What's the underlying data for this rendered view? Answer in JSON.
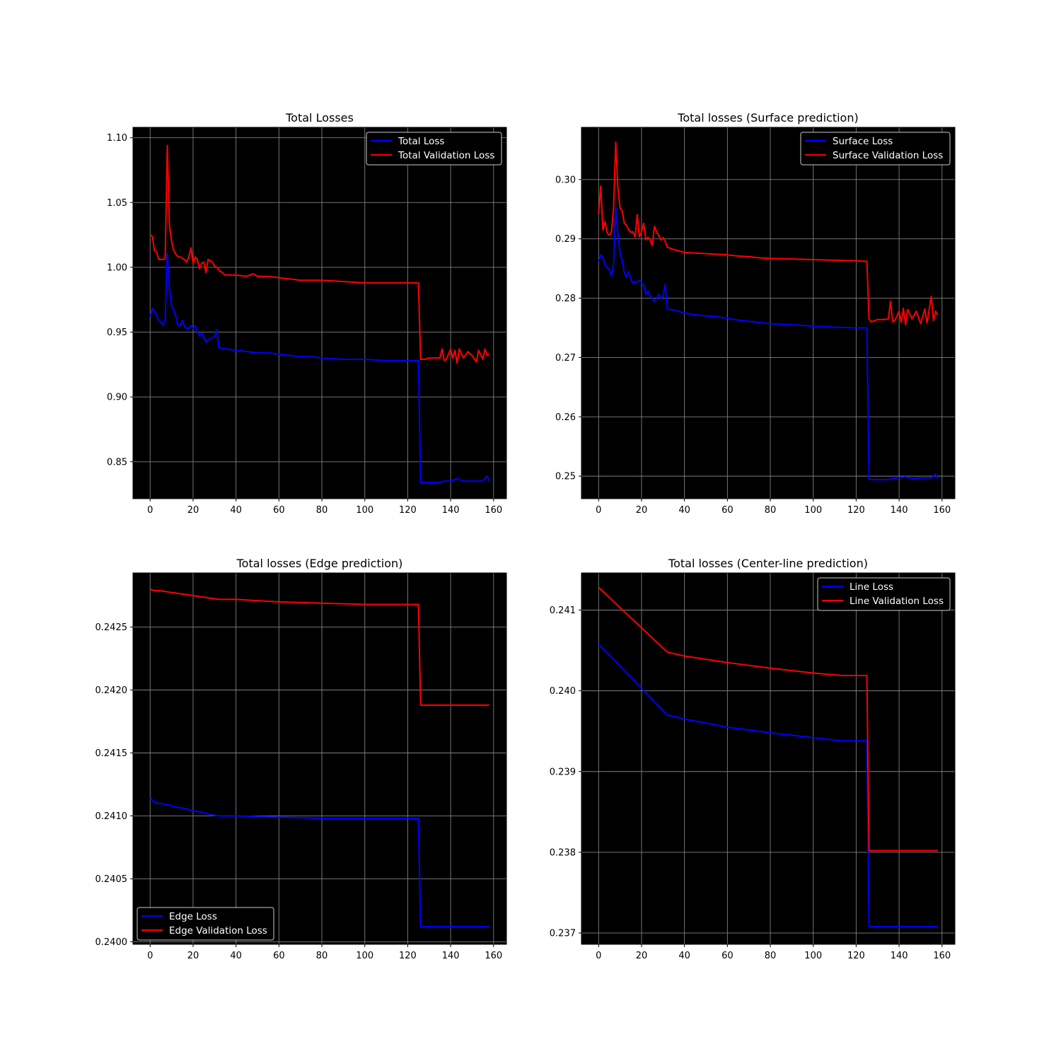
{
  "chart_data": [
    {
      "type": "line",
      "title": "Total Losses",
      "xlabel": "",
      "ylabel": "",
      "xlim": [
        -8,
        166
      ],
      "ylim": [
        0.8215,
        1.108
      ],
      "xticks": [
        0,
        20,
        40,
        60,
        80,
        100,
        120,
        140,
        160
      ],
      "yticks": [
        0.85,
        0.9,
        0.95,
        1.0,
        1.05,
        1.1
      ],
      "ytick_labels": [
        "0.85",
        "0.90",
        "0.95",
        "1.00",
        "1.05",
        "1.10"
      ],
      "grid": true,
      "legend": "top-right",
      "series": [
        {
          "name": "Total Loss",
          "color": "#0000ff",
          "x": [
            0,
            1,
            2,
            3,
            4,
            5,
            6,
            7,
            8,
            9,
            10,
            11,
            12,
            13,
            14,
            15,
            16,
            17,
            18,
            19,
            20,
            21,
            22,
            23,
            24,
            25,
            26,
            27,
            28,
            29,
            30,
            31,
            32,
            35,
            40,
            45,
            50,
            55,
            60,
            65,
            70,
            75,
            80,
            90,
            100,
            110,
            120,
            125,
            126,
            128,
            130,
            135,
            137,
            140,
            143,
            146,
            150,
            155,
            157,
            158
          ],
          "y": [
            0.962,
            0.968,
            0.966,
            0.963,
            0.959,
            0.958,
            0.955,
            0.96,
            1.011,
            0.984,
            0.97,
            0.967,
            0.962,
            0.955,
            0.955,
            0.959,
            0.954,
            0.953,
            0.953,
            0.955,
            0.953,
            0.955,
            0.95,
            0.947,
            0.949,
            0.946,
            0.942,
            0.944,
            0.945,
            0.946,
            0.946,
            0.952,
            0.938,
            0.937,
            0.936,
            0.935,
            0.934,
            0.934,
            0.933,
            0.932,
            0.931,
            0.931,
            0.93,
            0.929,
            0.929,
            0.928,
            0.928,
            0.928,
            0.834,
            0.834,
            0.834,
            0.834,
            0.835,
            0.835,
            0.837,
            0.835,
            0.835,
            0.835,
            0.839,
            0.835
          ]
        },
        {
          "name": "Total Validation Loss",
          "color": "#ff0000",
          "x": [
            0,
            1,
            2,
            3,
            4,
            5,
            6,
            7,
            8,
            9,
            10,
            11,
            12,
            13,
            14,
            15,
            16,
            17,
            18,
            19,
            20,
            21,
            22,
            23,
            24,
            25,
            26,
            27,
            28,
            29,
            30,
            31,
            32,
            35,
            40,
            45,
            48,
            50,
            55,
            60,
            65,
            70,
            75,
            80,
            90,
            100,
            110,
            120,
            125,
            126,
            128,
            130,
            133,
            135,
            136,
            137,
            138,
            140,
            141,
            142,
            143,
            144,
            146,
            148,
            150,
            152,
            153,
            155,
            156,
            157,
            158
          ],
          "y": [
            1.025,
            1.024,
            1.013,
            1.012,
            1.006,
            1.006,
            1.006,
            1.007,
            1.094,
            1.032,
            1.02,
            1.013,
            1.01,
            1.008,
            1.008,
            1.007,
            1.006,
            1.004,
            1.008,
            1.015,
            1.003,
            1.008,
            1.006,
            0.999,
            1.003,
            1.004,
            0.996,
            1.006,
            1.005,
            1.004,
            1.001,
            1.0,
            0.998,
            0.994,
            0.994,
            0.993,
            0.995,
            0.993,
            0.993,
            0.992,
            0.991,
            0.99,
            0.99,
            0.99,
            0.989,
            0.988,
            0.988,
            0.988,
            0.988,
            0.929,
            0.929,
            0.93,
            0.93,
            0.93,
            0.937,
            0.928,
            0.929,
            0.937,
            0.93,
            0.936,
            0.926,
            0.937,
            0.93,
            0.935,
            0.932,
            0.927,
            0.936,
            0.929,
            0.937,
            0.932,
            0.933
          ]
        }
      ]
    },
    {
      "type": "line",
      "title": "Total losses (Surface prediction)",
      "xlabel": "",
      "ylabel": "",
      "xlim": [
        -8,
        166
      ],
      "ylim": [
        0.2462,
        0.3088
      ],
      "xticks": [
        0,
        20,
        40,
        60,
        80,
        100,
        120,
        140,
        160
      ],
      "yticks": [
        0.25,
        0.26,
        0.27,
        0.28,
        0.29,
        0.3
      ],
      "ytick_labels": [
        "0.25",
        "0.26",
        "0.27",
        "0.28",
        "0.29",
        "0.30"
      ],
      "grid": true,
      "legend": "top-right",
      "series": [
        {
          "name": "Surface Loss",
          "color": "#0000ff",
          "x": [
            0,
            1,
            2,
            3,
            4,
            5,
            6,
            7,
            8,
            9,
            10,
            11,
            12,
            13,
            14,
            15,
            16,
            17,
            18,
            19,
            20,
            21,
            22,
            23,
            24,
            25,
            26,
            27,
            28,
            29,
            30,
            31,
            32,
            35,
            40,
            45,
            50,
            55,
            60,
            65,
            70,
            75,
            80,
            90,
            100,
            110,
            120,
            125,
            126,
            128,
            130,
            135,
            137,
            140,
            143,
            146,
            150,
            155,
            157,
            158
          ],
          "y": [
            0.2862,
            0.2873,
            0.287,
            0.2856,
            0.2851,
            0.2848,
            0.2837,
            0.2858,
            0.2953,
            0.2907,
            0.2876,
            0.2863,
            0.2843,
            0.2835,
            0.2845,
            0.2832,
            0.2825,
            0.2828,
            0.2827,
            0.283,
            0.2826,
            0.2822,
            0.2806,
            0.2812,
            0.2804,
            0.2799,
            0.2794,
            0.28,
            0.2807,
            0.28,
            0.2804,
            0.2823,
            0.2782,
            0.278,
            0.2775,
            0.2772,
            0.277,
            0.2769,
            0.2766,
            0.2763,
            0.2761,
            0.2759,
            0.2757,
            0.2755,
            0.2753,
            0.2751,
            0.275,
            0.275,
            0.2495,
            0.2494,
            0.2494,
            0.2494,
            0.2496,
            0.2497,
            0.2499,
            0.2496,
            0.2497,
            0.2497,
            0.2503,
            0.2495
          ]
        },
        {
          "name": "Surface Validation Loss",
          "color": "#ff0000",
          "x": [
            0,
            1,
            2,
            3,
            4,
            5,
            6,
            7,
            8,
            9,
            10,
            11,
            12,
            13,
            14,
            15,
            16,
            17,
            18,
            19,
            20,
            21,
            22,
            23,
            24,
            25,
            26,
            27,
            28,
            29,
            30,
            31,
            32,
            35,
            40,
            45,
            50,
            55,
            60,
            65,
            70,
            75,
            80,
            90,
            100,
            110,
            120,
            125,
            126,
            127,
            130,
            133,
            135,
            136,
            137,
            138,
            140,
            141,
            142,
            143,
            144,
            146,
            148,
            150,
            152,
            153,
            155,
            156,
            157,
            158
          ],
          "y": [
            0.2942,
            0.2989,
            0.2915,
            0.2929,
            0.291,
            0.2906,
            0.2912,
            0.2953,
            0.3063,
            0.2985,
            0.2952,
            0.2947,
            0.2926,
            0.2923,
            0.2915,
            0.2911,
            0.2912,
            0.2903,
            0.2941,
            0.2903,
            0.2912,
            0.2926,
            0.2898,
            0.2903,
            0.2898,
            0.2889,
            0.2921,
            0.2912,
            0.2906,
            0.2898,
            0.2902,
            0.2896,
            0.2886,
            0.2882,
            0.2877,
            0.2876,
            0.2875,
            0.2874,
            0.2873,
            0.2871,
            0.287,
            0.2868,
            0.2867,
            0.2866,
            0.2865,
            0.2864,
            0.2863,
            0.2862,
            0.2765,
            0.276,
            0.2764,
            0.2764,
            0.2765,
            0.2795,
            0.276,
            0.2762,
            0.2778,
            0.2759,
            0.2783,
            0.2755,
            0.2781,
            0.2765,
            0.2778,
            0.2757,
            0.2782,
            0.2758,
            0.2803,
            0.2762,
            0.2778,
            0.2771
          ]
        }
      ]
    },
    {
      "type": "line",
      "title": "Total losses (Edge prediction)",
      "xlabel": "",
      "ylabel": "",
      "xlim": [
        -8,
        166
      ],
      "ylim": [
        0.23998,
        0.24293
      ],
      "xticks": [
        0,
        20,
        40,
        60,
        80,
        100,
        120,
        140,
        160
      ],
      "yticks": [
        0.24,
        0.2405,
        0.241,
        0.2415,
        0.242,
        0.2425
      ],
      "ytick_labels": [
        "0.2400",
        "0.2405",
        "0.2410",
        "0.2415",
        "0.2420",
        "0.2425"
      ],
      "grid": true,
      "legend": "bottom-left",
      "series": [
        {
          "name": "Edge Loss",
          "color": "#0000ff",
          "x": [
            0,
            2,
            4,
            8,
            12,
            16,
            20,
            24,
            28,
            32,
            40,
            60,
            80,
            100,
            120,
            125,
            126,
            140,
            158
          ],
          "y": [
            0.24114,
            0.24111,
            0.2411,
            0.24109,
            0.24107,
            0.24106,
            0.24104,
            0.24103,
            0.24101,
            0.241,
            0.241,
            0.24099,
            0.24098,
            0.24098,
            0.24098,
            0.24098,
            0.24012,
            0.24012,
            0.24012
          ]
        },
        {
          "name": "Edge Validation Loss",
          "color": "#ff0000",
          "x": [
            0,
            2,
            4,
            8,
            12,
            16,
            20,
            24,
            28,
            32,
            40,
            60,
            80,
            100,
            120,
            125,
            126,
            140,
            158
          ],
          "y": [
            0.2428,
            0.24279,
            0.24279,
            0.24278,
            0.24277,
            0.24276,
            0.24275,
            0.24274,
            0.24273,
            0.24272,
            0.24272,
            0.2427,
            0.24269,
            0.24268,
            0.24268,
            0.24268,
            0.24188,
            0.24188,
            0.24188
          ]
        }
      ]
    },
    {
      "type": "line",
      "title": "Total losses (Center-line prediction)",
      "xlabel": "",
      "ylabel": "",
      "xlim": [
        -8,
        166
      ],
      "ylim": [
        0.23686,
        0.24146
      ],
      "xticks": [
        0,
        20,
        40,
        60,
        80,
        100,
        120,
        140,
        160
      ],
      "yticks": [
        0.237,
        0.238,
        0.239,
        0.24,
        0.241
      ],
      "ytick_labels": [
        "0.237",
        "0.238",
        "0.239",
        "0.240",
        "0.241"
      ],
      "grid": true,
      "legend": "top-right",
      "series": [
        {
          "name": "Line Loss",
          "color": "#0000ff",
          "x": [
            0,
            32,
            40,
            60,
            80,
            100,
            113,
            125,
            126,
            158
          ],
          "y": [
            0.24058,
            0.2397,
            0.23965,
            0.23955,
            0.23948,
            0.23942,
            0.23938,
            0.23938,
            0.23708,
            0.23708
          ]
        },
        {
          "name": "Line Validation Loss",
          "color": "#ff0000",
          "x": [
            0,
            32,
            40,
            60,
            80,
            100,
            113,
            125,
            126,
            158
          ],
          "y": [
            0.24128,
            0.24048,
            0.24043,
            0.24035,
            0.24028,
            0.24022,
            0.24019,
            0.24019,
            0.23802,
            0.23802
          ]
        }
      ]
    }
  ]
}
